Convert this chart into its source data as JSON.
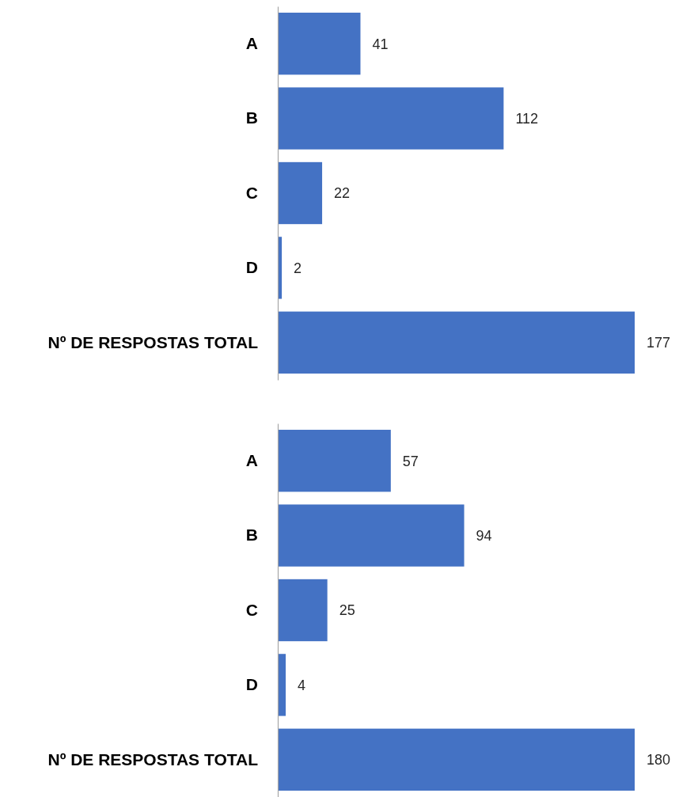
{
  "chart_data": [
    {
      "type": "bar",
      "orientation": "horizontal",
      "categories": [
        "A",
        "B",
        "C",
        "D",
        "Nº DE RESPOSTAS TOTAL"
      ],
      "values": [
        41,
        112,
        22,
        2,
        177
      ],
      "color": "#4472c4",
      "xlim": [
        0,
        177
      ],
      "tick_labels": "y",
      "data_labels": true
    },
    {
      "type": "bar",
      "orientation": "horizontal",
      "categories": [
        "A",
        "B",
        "C",
        "D",
        "Nº DE RESPOSTAS TOTAL"
      ],
      "values": [
        57,
        94,
        25,
        4,
        180
      ],
      "color": "#4472c4",
      "xlim": [
        0,
        180
      ],
      "tick_labels": "y",
      "data_labels": true
    }
  ]
}
